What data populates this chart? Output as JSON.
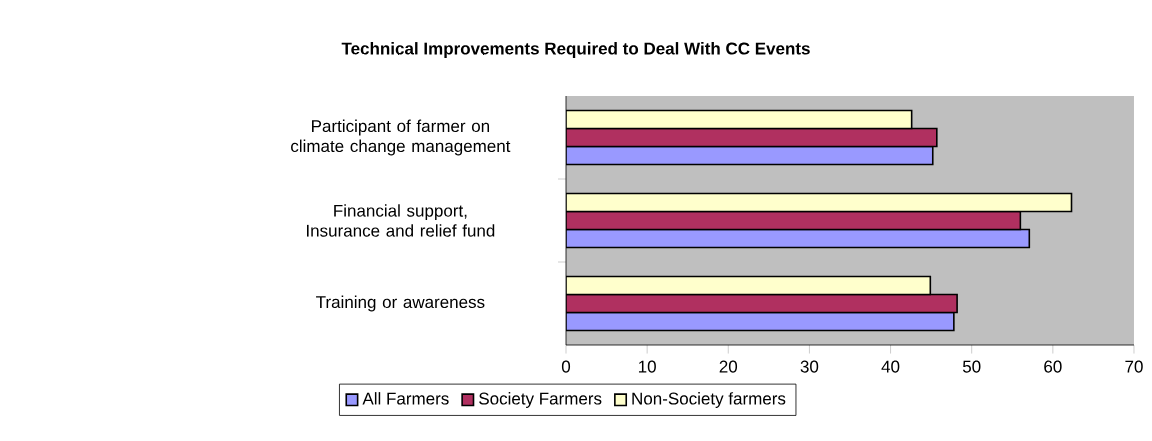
{
  "chart_data": {
    "type": "bar",
    "orientation": "horizontal",
    "title": "Technical Improvements Required to Deal With CC Events",
    "categories": [
      "Participant of farmer on climate change management",
      "Financial support, Insurance and relief fund",
      "Training or awareness"
    ],
    "series": [
      {
        "name": "All Farmers",
        "color": "#9999ff",
        "values": [
          45.2,
          57.1,
          47.8
        ]
      },
      {
        "name": "Society Farmers",
        "color": "#b03060",
        "values": [
          45.7,
          56.0,
          48.2
        ]
      },
      {
        "name": "Non-Society farmers",
        "color": "#ffffcc",
        "values": [
          42.6,
          62.3,
          44.9
        ]
      }
    ],
    "xlim": [
      0,
      70
    ],
    "xticks": [
      0,
      10,
      20,
      30,
      40,
      50,
      60,
      70
    ],
    "grid": false,
    "legend": "bottom"
  }
}
